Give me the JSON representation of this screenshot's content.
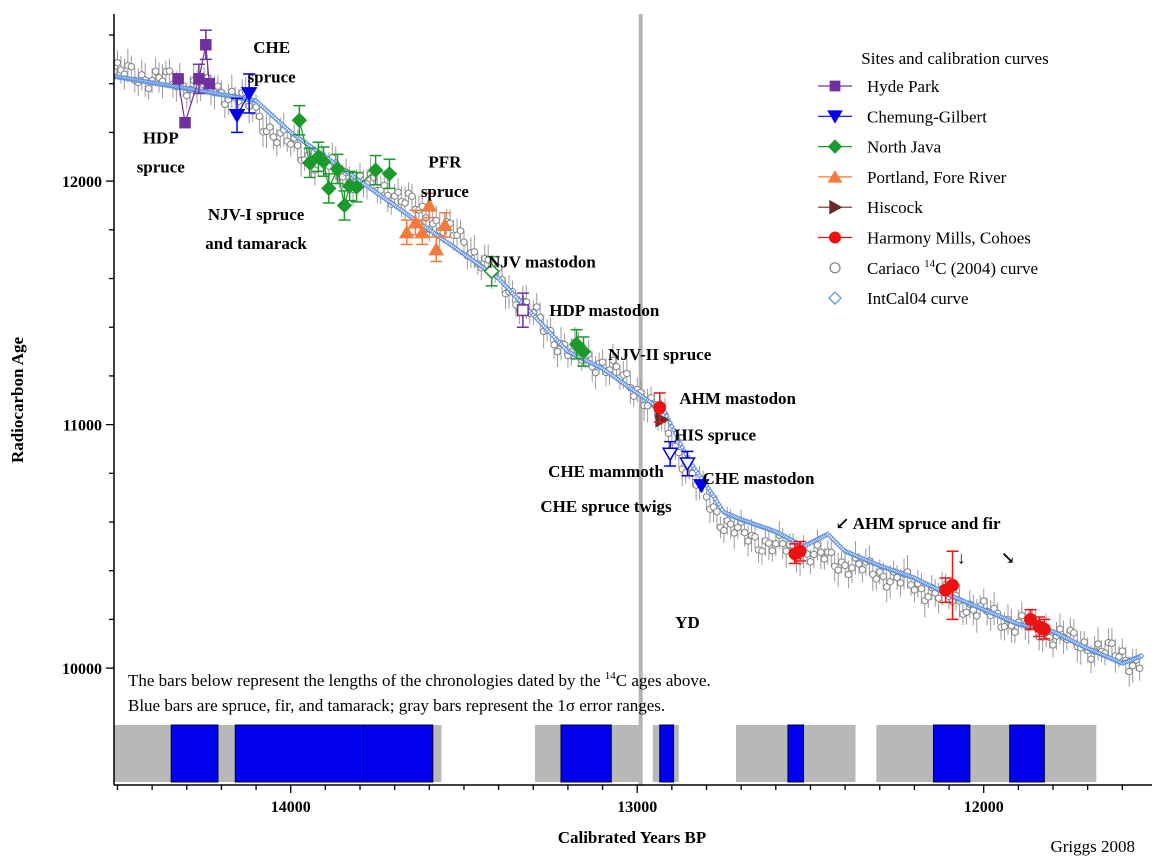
{
  "chart_data": {
    "type": "scatter",
    "title": "",
    "xlabel": "Calibrated Years BP",
    "ylabel": "Radiocarbon Age",
    "xlim": [
      14510,
      12000
    ],
    "x_reversed": true,
    "ylim": [
      9520,
      12680
    ],
    "x_ticks": [
      14000,
      13000,
      12000
    ],
    "x_tick_labels": [
      "14000",
      "13000",
      "12000"
    ],
    "y_ticks": [
      10000,
      11000,
      12000
    ],
    "y_tick_labels": [
      "10000",
      "11000",
      "12000"
    ],
    "credit": "Griggs 2008",
    "younger_dryas": {
      "x": 12990,
      "label": "YD",
      "label_x": 12855,
      "label_y": 10190
    },
    "legend": {
      "title": "Sites and calibration curves",
      "position": "top-right",
      "entries": [
        {
          "label": "Hyde Park",
          "marker": "square",
          "color": "#7030a0"
        },
        {
          "label": "Chemung-Gilbert",
          "marker": "triangle-down",
          "color": "#0000ee"
        },
        {
          "label": "North Java",
          "marker": "diamond",
          "color": "#1a9a2a"
        },
        {
          "label": "Portland, Fore River",
          "marker": "triangle-up",
          "color": "#f47a3c"
        },
        {
          "label": "Hiscock",
          "marker": "triangle-right",
          "color": "#6b2a2a"
        },
        {
          "label": "Harmony Mills, Cohoes",
          "marker": "circle",
          "color": "#ee1111"
        },
        {
          "label_pre": "Cariaco ",
          "label_sup": "14",
          "label_post": "C (2004) curve",
          "marker": "open-circle",
          "color": "#808080"
        },
        {
          "label": "IntCal04 curve",
          "marker": "open-diamond",
          "color": "#5b8fe0"
        }
      ]
    },
    "site_labels": [
      {
        "text": "HDP",
        "x": 14375,
        "y": 12180
      },
      {
        "text": "spruce",
        "x": 14375,
        "y": 12060
      },
      {
        "text": "CHE",
        "x": 14055,
        "y": 12550
      },
      {
        "text": "spruce",
        "x": 14055,
        "y": 12430
      },
      {
        "text": "NJV-I spruce",
        "x": 14100,
        "y": 11865
      },
      {
        "text": "and tamarack",
        "x": 14100,
        "y": 11745
      },
      {
        "text": "PFR",
        "x": 13555,
        "y": 12080
      },
      {
        "text": "spruce",
        "x": 13555,
        "y": 11960
      },
      {
        "text": "NJV mastodon",
        "x": 13275,
        "y": 11670
      },
      {
        "text": "HDP mastodon",
        "x": 13095,
        "y": 11470
      },
      {
        "text": "NJV-II spruce",
        "x": 12935,
        "y": 11290
      },
      {
        "text": "AHM mastodon",
        "x": 12710,
        "y": 11110
      },
      {
        "text": "HIS spruce",
        "x": 12775,
        "y": 10960
      },
      {
        "text": "CHE mammoth",
        "x": 13090,
        "y": 10810
      },
      {
        "text": "CHE spruce twigs",
        "x": 13090,
        "y": 10665
      },
      {
        "text": "CHE mastodon",
        "x": 12650,
        "y": 10780
      },
      {
        "text": "↙ AHM spruce and fir",
        "x": 12190,
        "y": 10595
      },
      {
        "text": "↓",
        "x": 12065,
        "y": 10455
      },
      {
        "text": "↘",
        "x": 11930,
        "y": 10455
      }
    ],
    "note": {
      "line1_pre": "The bars below represent the lengths of the chronologies dated by the ",
      "line1_sup": "14",
      "line1_post": "C ages above.",
      "line2_pre": "Blue bars are spruce, fir, and tamarack; gray bars represent the 1",
      "line2_sigma": "σ",
      "line2_post": " error ranges."
    },
    "chronology_bars": {
      "gray": [
        [
          14510,
          13565
        ],
        [
          13295,
          12990
        ],
        [
          12955,
          12880
        ],
        [
          12715,
          12370
        ],
        [
          12310,
          11675
        ]
      ],
      "blue": [
        [
          14345,
          14210
        ],
        [
          14160,
          13790
        ],
        [
          13790,
          13590
        ],
        [
          13220,
          13075
        ],
        [
          12935,
          12895
        ],
        [
          12565,
          12520
        ],
        [
          12145,
          12040
        ],
        [
          11925,
          11825
        ]
      ]
    },
    "series": [
      {
        "name": "Hyde Park",
        "points": [
          {
            "x": 14325,
            "y": 12420,
            "e": 0
          },
          {
            "x": 14305,
            "y": 12240,
            "e": 0
          },
          {
            "x": 14265,
            "y": 12420,
            "e": 60
          },
          {
            "x": 14245,
            "y": 12560,
            "e": 60
          },
          {
            "x": 14235,
            "y": 12400,
            "e": 0
          },
          {
            "x": 13330,
            "y": 11470,
            "e": 70
          }
        ],
        "open": [
          13330
        ],
        "line": [
          [
            14325,
            12420
          ],
          [
            14305,
            12240
          ],
          [
            14265,
            12420
          ],
          [
            14245,
            12560
          ],
          [
            14235,
            12400
          ]
        ]
      },
      {
        "name": "Chemung-Gilbert",
        "points": [
          {
            "x": 14155,
            "y": 12270,
            "e": 70
          },
          {
            "x": 14120,
            "y": 12360,
            "e": 80
          },
          {
            "x": 12905,
            "y": 10880,
            "e": 50
          },
          {
            "x": 12855,
            "y": 10840,
            "e": 50
          },
          {
            "x": 12815,
            "y": 10750,
            "e": 0
          }
        ],
        "open": [
          12905,
          12855
        ],
        "line": [
          [
            14155,
            12270
          ],
          [
            14120,
            12360
          ]
        ]
      },
      {
        "name": "North Java",
        "points": [
          {
            "x": 13975,
            "y": 12250,
            "e": 60
          },
          {
            "x": 13945,
            "y": 12075,
            "e": 60
          },
          {
            "x": 13920,
            "y": 12100,
            "e": 60
          },
          {
            "x": 13905,
            "y": 12080,
            "e": 60
          },
          {
            "x": 13890,
            "y": 11970,
            "e": 60
          },
          {
            "x": 13865,
            "y": 12050,
            "e": 60
          },
          {
            "x": 13845,
            "y": 11900,
            "e": 60
          },
          {
            "x": 13830,
            "y": 11980,
            "e": 60
          },
          {
            "x": 13810,
            "y": 11975,
            "e": 60
          },
          {
            "x": 13755,
            "y": 12045,
            "e": 60
          },
          {
            "x": 13715,
            "y": 12030,
            "e": 60
          },
          {
            "x": 13420,
            "y": 11630,
            "e": 60
          },
          {
            "x": 13175,
            "y": 11330,
            "e": 60
          },
          {
            "x": 13155,
            "y": 11300,
            "e": 60
          }
        ],
        "open": [
          13420
        ],
        "line": [
          [
            13975,
            12250
          ],
          [
            13945,
            12075
          ],
          [
            13920,
            12100
          ],
          [
            13905,
            12080
          ],
          [
            13890,
            11970
          ],
          [
            13865,
            12050
          ],
          [
            13845,
            11900
          ],
          [
            13830,
            11980
          ],
          [
            13810,
            11975
          ],
          [
            13755,
            12045
          ],
          [
            13715,
            12030
          ]
        ]
      },
      {
        "name": "Portland, Fore River",
        "points": [
          {
            "x": 13665,
            "y": 11790,
            "e": 50
          },
          {
            "x": 13640,
            "y": 11830,
            "e": 50
          },
          {
            "x": 13620,
            "y": 11790,
            "e": 50
          },
          {
            "x": 13600,
            "y": 11900,
            "e": 50
          },
          {
            "x": 13580,
            "y": 11720,
            "e": 50
          },
          {
            "x": 13555,
            "y": 11820,
            "e": 50
          }
        ],
        "line": []
      },
      {
        "name": "Hiscock",
        "points": [
          {
            "x": 12930,
            "y": 11020,
            "e": 0
          }
        ],
        "line": []
      },
      {
        "name": "Harmony Mills, Cohoes",
        "points": [
          {
            "x": 12935,
            "y": 11070,
            "e": 60
          },
          {
            "x": 12545,
            "y": 10470,
            "e": 40
          },
          {
            "x": 12530,
            "y": 10480,
            "e": 40
          },
          {
            "x": 12110,
            "y": 10320,
            "e": 50
          },
          {
            "x": 12090,
            "y": 10340,
            "e": 140
          },
          {
            "x": 11865,
            "y": 10200,
            "e": 40
          },
          {
            "x": 11840,
            "y": 10170,
            "e": 40
          },
          {
            "x": 11825,
            "y": 10160,
            "e": 40
          }
        ],
        "line": []
      }
    ],
    "cariaco_anchors": [
      [
        14510,
        12450
      ],
      [
        14300,
        12400
      ],
      [
        14150,
        12350
      ],
      [
        14050,
        12200
      ],
      [
        13950,
        12100
      ],
      [
        13800,
        12000
      ],
      [
        13700,
        11950
      ],
      [
        13600,
        11850
      ],
      [
        13500,
        11750
      ],
      [
        13400,
        11600
      ],
      [
        13300,
        11450
      ],
      [
        13200,
        11300
      ],
      [
        13100,
        11250
      ],
      [
        13000,
        11150
      ],
      [
        12920,
        11000
      ],
      [
        12850,
        10800
      ],
      [
        12800,
        10700
      ],
      [
        12750,
        10600
      ],
      [
        12700,
        10550
      ],
      [
        12600,
        10500
      ],
      [
        12500,
        10470
      ],
      [
        12400,
        10430
      ],
      [
        12300,
        10390
      ],
      [
        12200,
        10340
      ],
      [
        12100,
        10290
      ],
      [
        12000,
        10230
      ],
      [
        11900,
        10180
      ],
      [
        11800,
        10140
      ],
      [
        11700,
        10090
      ],
      [
        11600,
        10050
      ],
      [
        11545,
        10010
      ]
    ],
    "intcal_anchors": [
      [
        14510,
        12430
      ],
      [
        14300,
        12380
      ],
      [
        14100,
        12330
      ],
      [
        14000,
        12200
      ],
      [
        13900,
        12100
      ],
      [
        13800,
        12000
      ],
      [
        13700,
        11900
      ],
      [
        13600,
        11800
      ],
      [
        13500,
        11700
      ],
      [
        13400,
        11600
      ],
      [
        13300,
        11450
      ],
      [
        13200,
        11300
      ],
      [
        13100,
        11230
      ],
      [
        13000,
        11130
      ],
      [
        12920,
        11050
      ],
      [
        12850,
        10850
      ],
      [
        12800,
        10750
      ],
      [
        12750,
        10640
      ],
      [
        12700,
        10610
      ],
      [
        12600,
        10560
      ],
      [
        12520,
        10500
      ],
      [
        12450,
        10550
      ],
      [
        12400,
        10480
      ],
      [
        12300,
        10420
      ],
      [
        12200,
        10370
      ],
      [
        12100,
        10300
      ],
      [
        12000,
        10240
      ],
      [
        11900,
        10180
      ],
      [
        11800,
        10150
      ],
      [
        11700,
        10080
      ],
      [
        11600,
        10020
      ],
      [
        11545,
        10050
      ]
    ]
  }
}
